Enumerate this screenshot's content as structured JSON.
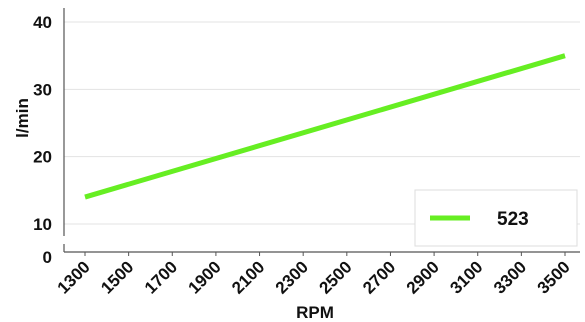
{
  "chart_data": {
    "type": "line",
    "xlabel": "RPM",
    "ylabel": "l/min",
    "x": [
      1300,
      3500
    ],
    "xticks": [
      1300,
      1500,
      1700,
      1900,
      2100,
      2300,
      2500,
      2700,
      2900,
      3100,
      3300,
      3500
    ],
    "yticks": [
      0,
      10,
      20,
      30,
      40
    ],
    "xlim": [
      1250,
      3550
    ],
    "ylim": [
      0,
      42
    ],
    "grid": true,
    "y_axis_break": true,
    "legend_placement": "bottom-right",
    "series": [
      {
        "name": "523",
        "color": "#66ee22",
        "values": [
          14,
          35
        ]
      }
    ]
  }
}
